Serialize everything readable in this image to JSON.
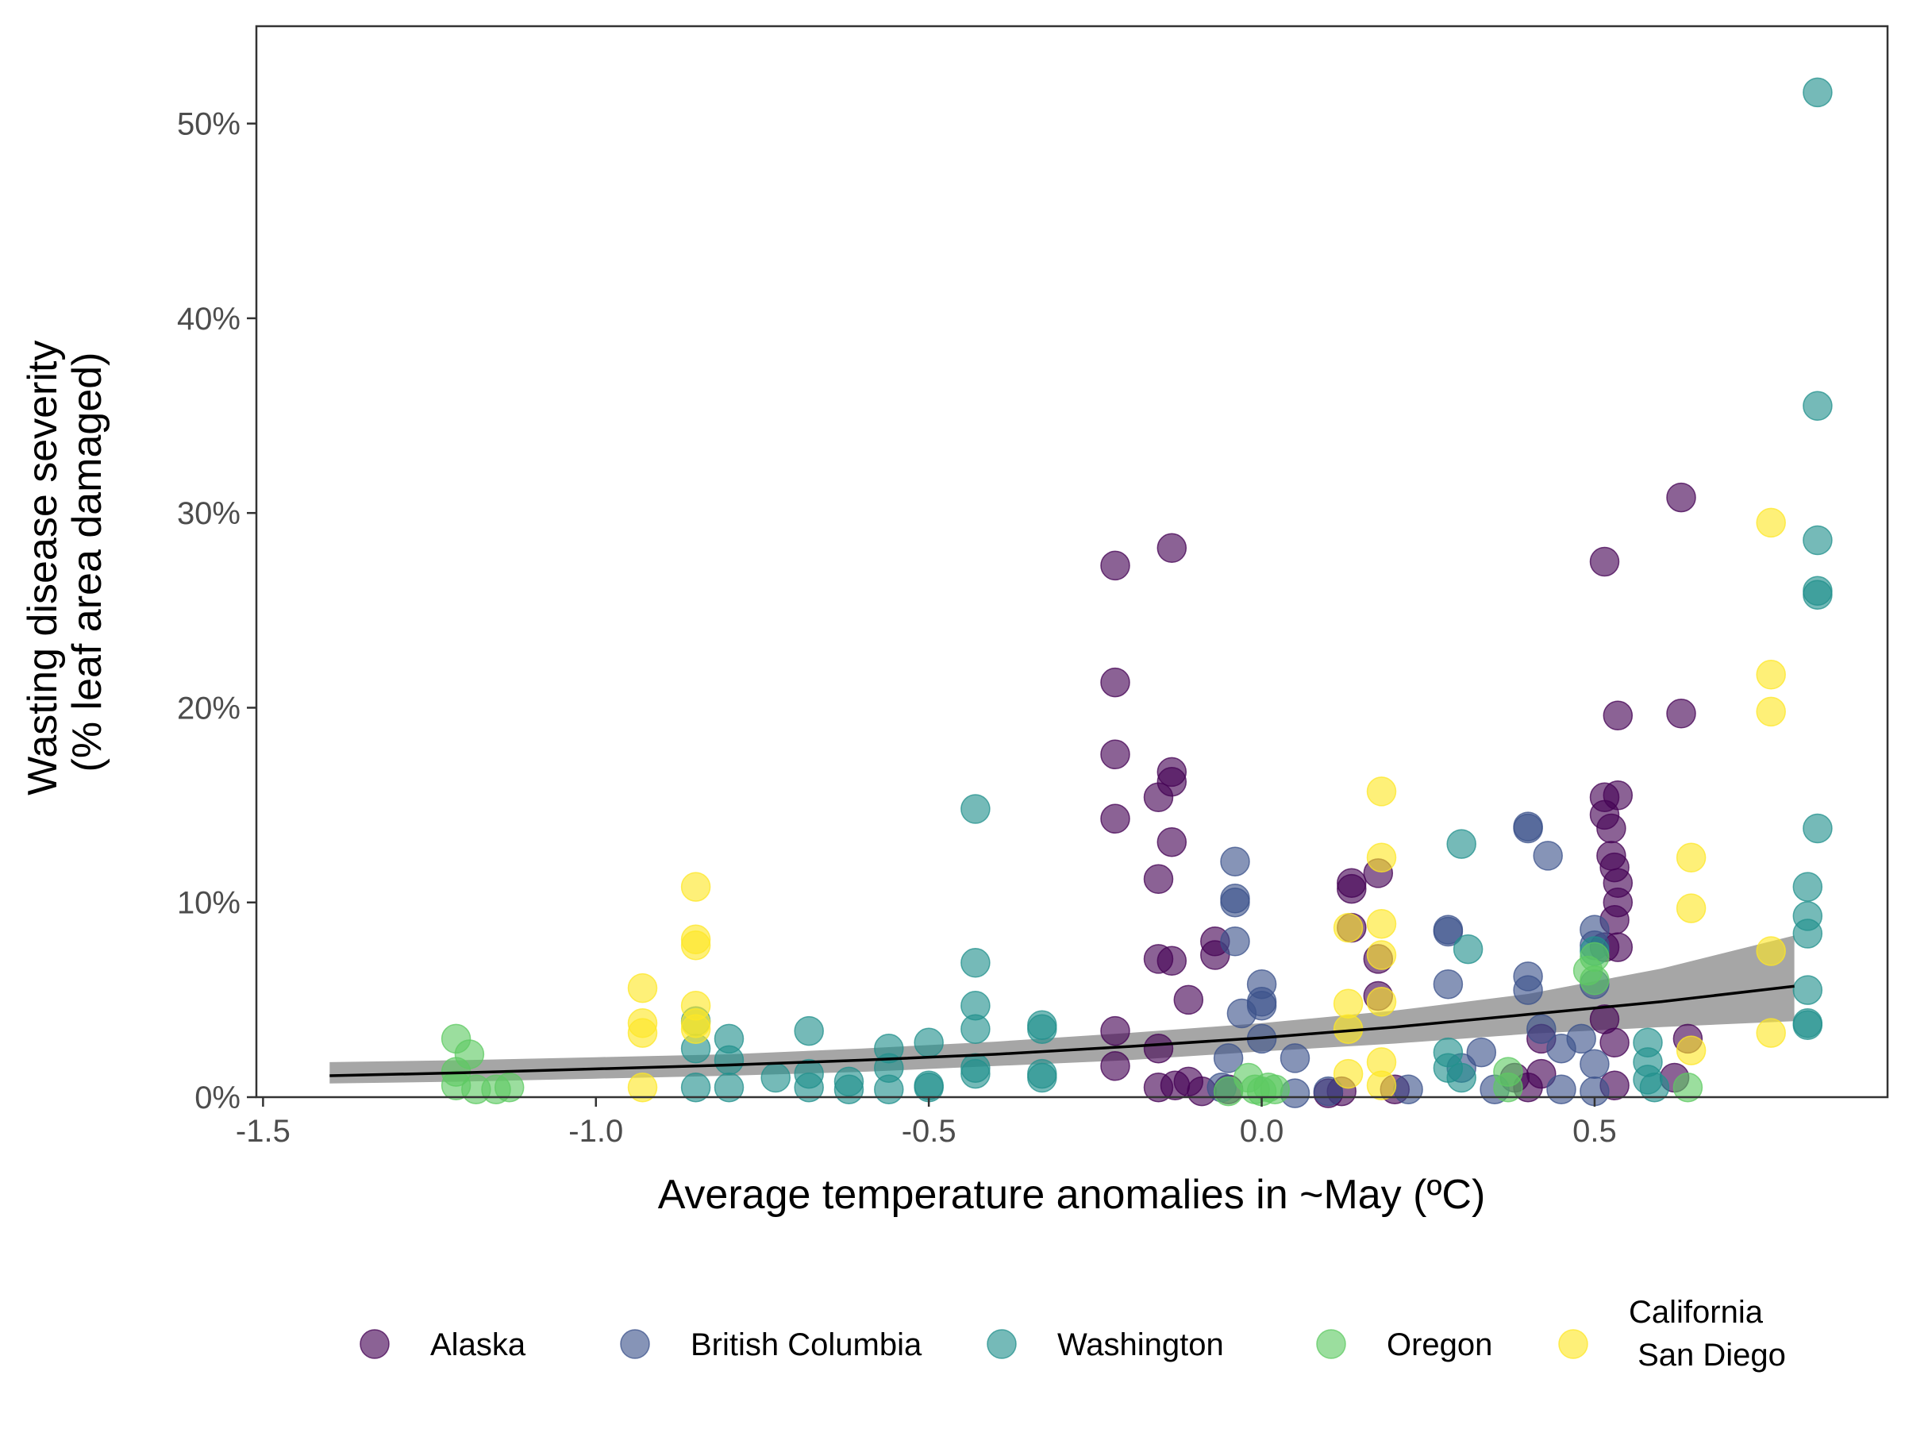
{
  "chart_data": {
    "type": "scatter",
    "title": "",
    "xlabel": "Average temperature anomalies in ~May (ºC)",
    "ylabel_lines": [
      "Wasting disease severity",
      "(% leaf area damaged)"
    ],
    "xlim": [
      -1.51,
      0.94
    ],
    "ylim": [
      0,
      0.55
    ],
    "x_ticks": [
      {
        "value": -1.5,
        "label": "-1.5"
      },
      {
        "value": -1.0,
        "label": "-1.0"
      },
      {
        "value": -0.5,
        "label": "-0.5"
      },
      {
        "value": 0.0,
        "label": "0.0"
      },
      {
        "value": 0.5,
        "label": "0.5"
      }
    ],
    "y_ticks": [
      {
        "value": 0.0,
        "label": "0%"
      },
      {
        "value": 0.1,
        "label": "10%"
      },
      {
        "value": 0.2,
        "label": "20%"
      },
      {
        "value": 0.3,
        "label": "30%"
      },
      {
        "value": 0.4,
        "label": "40%"
      },
      {
        "value": 0.5,
        "label": "50%"
      }
    ],
    "grid": false,
    "legend_position": "bottom",
    "series": [
      {
        "name": "Alaska",
        "color": "#440154",
        "points": [
          [
            -0.22,
            0.273
          ],
          [
            -0.22,
            0.213
          ],
          [
            -0.22,
            0.176
          ],
          [
            -0.22,
            0.143
          ],
          [
            -0.22,
            0.034
          ],
          [
            -0.22,
            0.016
          ],
          [
            -0.135,
            0.282
          ],
          [
            -0.135,
            0.167
          ],
          [
            -0.135,
            0.162
          ],
          [
            -0.155,
            0.154
          ],
          [
            -0.135,
            0.131
          ],
          [
            -0.155,
            0.112
          ],
          [
            -0.155,
            0.071
          ],
          [
            -0.135,
            0.07
          ],
          [
            -0.155,
            0.025
          ],
          [
            -0.155,
            0.005
          ],
          [
            -0.13,
            0.006
          ],
          [
            -0.11,
            0.05
          ],
          [
            -0.11,
            0.008
          ],
          [
            -0.09,
            0.003
          ],
          [
            -0.07,
            0.08
          ],
          [
            -0.07,
            0.073
          ],
          [
            -0.05,
            0.004
          ],
          [
            0.1,
            0.002
          ],
          [
            0.12,
            0.003
          ],
          [
            0.135,
            0.11
          ],
          [
            0.135,
            0.107
          ],
          [
            0.135,
            0.087
          ],
          [
            0.175,
            0.115
          ],
          [
            0.175,
            0.052
          ],
          [
            0.175,
            0.071
          ],
          [
            0.2,
            0.004
          ],
          [
            0.38,
            0.01
          ],
          [
            0.4,
            0.005
          ],
          [
            0.42,
            0.012
          ],
          [
            0.42,
            0.03
          ],
          [
            0.515,
            0.275
          ],
          [
            0.515,
            0.154
          ],
          [
            0.535,
            0.155
          ],
          [
            0.515,
            0.145
          ],
          [
            0.525,
            0.138
          ],
          [
            0.525,
            0.124
          ],
          [
            0.53,
            0.118
          ],
          [
            0.535,
            0.11
          ],
          [
            0.535,
            0.1
          ],
          [
            0.53,
            0.091
          ],
          [
            0.515,
            0.077
          ],
          [
            0.535,
            0.077
          ],
          [
            0.515,
            0.04
          ],
          [
            0.53,
            0.028
          ],
          [
            0.53,
            0.006
          ],
          [
            0.535,
            0.196
          ],
          [
            0.63,
            0.308
          ],
          [
            0.63,
            0.197
          ],
          [
            0.64,
            0.03
          ],
          [
            0.62,
            0.01
          ]
        ]
      },
      {
        "name": "British Columbia",
        "color": "#3b528b",
        "points": [
          [
            -0.04,
            0.121
          ],
          [
            -0.04,
            0.102
          ],
          [
            -0.04,
            0.1
          ],
          [
            -0.04,
            0.08
          ],
          [
            -0.03,
            0.043
          ],
          [
            -0.05,
            0.02
          ],
          [
            -0.06,
            0.005
          ],
          [
            0.0,
            0.058
          ],
          [
            0.0,
            0.049
          ],
          [
            0.0,
            0.047
          ],
          [
            0.0,
            0.03
          ],
          [
            0.05,
            0.02
          ],
          [
            0.05,
            0.002
          ],
          [
            0.1,
            0.003
          ],
          [
            0.22,
            0.004
          ],
          [
            0.28,
            0.085
          ],
          [
            0.28,
            0.086
          ],
          [
            0.28,
            0.058
          ],
          [
            0.3,
            0.015
          ],
          [
            0.33,
            0.023
          ],
          [
            0.35,
            0.004
          ],
          [
            0.4,
            0.139
          ],
          [
            0.4,
            0.138
          ],
          [
            0.43,
            0.124
          ],
          [
            0.4,
            0.062
          ],
          [
            0.4,
            0.055
          ],
          [
            0.42,
            0.035
          ],
          [
            0.45,
            0.025
          ],
          [
            0.45,
            0.004
          ],
          [
            0.48,
            0.03
          ],
          [
            0.5,
            0.086
          ],
          [
            0.5,
            0.078
          ],
          [
            0.5,
            0.058
          ],
          [
            0.5,
            0.017
          ],
          [
            0.5,
            0.003
          ]
        ]
      },
      {
        "name": "Washington",
        "color": "#21908c",
        "points": [
          [
            -0.85,
            0.039
          ],
          [
            -0.85,
            0.025
          ],
          [
            -0.85,
            0.005
          ],
          [
            -0.8,
            0.03
          ],
          [
            -0.8,
            0.019
          ],
          [
            -0.8,
            0.005
          ],
          [
            -0.73,
            0.01
          ],
          [
            -0.68,
            0.034
          ],
          [
            -0.68,
            0.012
          ],
          [
            -0.68,
            0.005
          ],
          [
            -0.62,
            0.008
          ],
          [
            -0.62,
            0.004
          ],
          [
            -0.56,
            0.025
          ],
          [
            -0.56,
            0.015
          ],
          [
            -0.56,
            0.004
          ],
          [
            -0.5,
            0.028
          ],
          [
            -0.5,
            0.006
          ],
          [
            -0.5,
            0.005
          ],
          [
            -0.43,
            0.148
          ],
          [
            -0.43,
            0.069
          ],
          [
            -0.43,
            0.047
          ],
          [
            -0.43,
            0.035
          ],
          [
            -0.43,
            0.015
          ],
          [
            -0.43,
            0.012
          ],
          [
            -0.33,
            0.037
          ],
          [
            -0.33,
            0.035
          ],
          [
            -0.33,
            0.01
          ],
          [
            -0.33,
            0.012
          ],
          [
            0.28,
            0.023
          ],
          [
            0.28,
            0.015
          ],
          [
            0.3,
            0.13
          ],
          [
            0.31,
            0.076
          ],
          [
            0.3,
            0.01
          ],
          [
            0.5,
            0.075
          ],
          [
            0.58,
            0.028
          ],
          [
            0.58,
            0.018
          ],
          [
            0.58,
            0.009
          ],
          [
            0.59,
            0.005
          ],
          [
            0.835,
            0.516
          ],
          [
            0.835,
            0.355
          ],
          [
            0.835,
            0.286
          ],
          [
            0.835,
            0.26
          ],
          [
            0.835,
            0.258
          ],
          [
            0.835,
            0.138
          ],
          [
            0.82,
            0.108
          ],
          [
            0.82,
            0.093
          ],
          [
            0.82,
            0.084
          ],
          [
            0.82,
            0.055
          ],
          [
            0.82,
            0.037
          ],
          [
            0.82,
            0.038
          ]
        ]
      },
      {
        "name": "Oregon",
        "color": "#5ec962",
        "points": [
          [
            -1.21,
            0.03
          ],
          [
            -1.19,
            0.022
          ],
          [
            -1.21,
            0.013
          ],
          [
            -1.21,
            0.006
          ],
          [
            -1.18,
            0.004
          ],
          [
            -1.15,
            0.004
          ],
          [
            -1.13,
            0.005
          ],
          [
            -0.05,
            0.003
          ],
          [
            -0.02,
            0.01
          ],
          [
            -0.01,
            0.004
          ],
          [
            0.0,
            0.003
          ],
          [
            0.01,
            0.005
          ],
          [
            0.02,
            0.004
          ],
          [
            0.37,
            0.013
          ],
          [
            0.37,
            0.005
          ],
          [
            0.49,
            0.065
          ],
          [
            0.5,
            0.072
          ],
          [
            0.5,
            0.06
          ],
          [
            0.64,
            0.005
          ]
        ]
      },
      {
        "name": "California\n San Diego",
        "color": "#fde725",
        "points": [
          [
            -0.93,
            0.056
          ],
          [
            -0.93,
            0.038
          ],
          [
            -0.93,
            0.033
          ],
          [
            -0.93,
            0.005
          ],
          [
            -0.85,
            0.108
          ],
          [
            -0.85,
            0.081
          ],
          [
            -0.85,
            0.078
          ],
          [
            -0.85,
            0.047
          ],
          [
            -0.85,
            0.038
          ],
          [
            -0.85,
            0.035
          ],
          [
            0.13,
            0.087
          ],
          [
            0.13,
            0.048
          ],
          [
            0.13,
            0.035
          ],
          [
            0.13,
            0.012
          ],
          [
            0.18,
            0.157
          ],
          [
            0.18,
            0.123
          ],
          [
            0.18,
            0.089
          ],
          [
            0.18,
            0.073
          ],
          [
            0.18,
            0.049
          ],
          [
            0.18,
            0.018
          ],
          [
            0.18,
            0.006
          ],
          [
            0.645,
            0.123
          ],
          [
            0.645,
            0.097
          ],
          [
            0.645,
            0.024
          ],
          [
            0.765,
            0.295
          ],
          [
            0.765,
            0.217
          ],
          [
            0.765,
            0.198
          ],
          [
            0.765,
            0.075
          ],
          [
            0.765,
            0.033
          ]
        ]
      }
    ],
    "trend": {
      "name": "fit",
      "line_color": "#000000",
      "band_color": "#a6a6a6",
      "x": [
        -1.4,
        -1.2,
        -1.0,
        -0.8,
        -0.6,
        -0.4,
        -0.2,
        0.0,
        0.2,
        0.4,
        0.6,
        0.8
      ],
      "y": [
        0.011,
        0.0125,
        0.0145,
        0.0165,
        0.019,
        0.022,
        0.026,
        0.0305,
        0.036,
        0.0425,
        0.049,
        0.057
      ],
      "lower": [
        0.007,
        0.008,
        0.0095,
        0.011,
        0.013,
        0.016,
        0.019,
        0.0235,
        0.0275,
        0.0325,
        0.036,
        0.039
      ],
      "upper": [
        0.018,
        0.019,
        0.0205,
        0.022,
        0.025,
        0.0285,
        0.033,
        0.038,
        0.0445,
        0.053,
        0.066,
        0.083
      ]
    }
  }
}
